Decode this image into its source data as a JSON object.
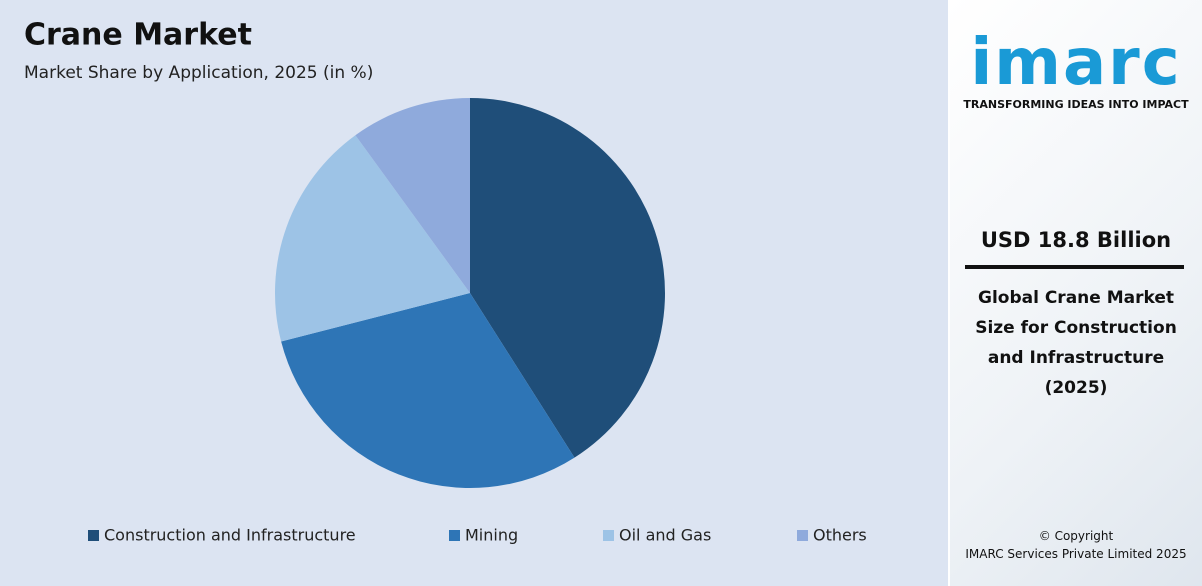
{
  "chart_data": {
    "type": "pie",
    "title": "Crane Market",
    "subtitle": "Market Share by Application, 2025 (in %)",
    "categories": [
      "Construction and Infrastructure",
      "Mining",
      "Oil and Gas",
      "Others"
    ],
    "values": [
      41,
      30,
      19,
      10
    ],
    "colors": [
      "#1f4e79",
      "#2e75b6",
      "#9dc3e6",
      "#8faadc"
    ]
  },
  "sidebar": {
    "logo": "imarc",
    "tagline": "TRANSFORMING IDEAS INTO IMPACT",
    "headline": "USD 18.8 Billion",
    "description": "Global Crane Market Size for Construction and Infrastructure (2025)",
    "copyright": "© Copyright",
    "company": "IMARC Services Private Limited 2025"
  }
}
